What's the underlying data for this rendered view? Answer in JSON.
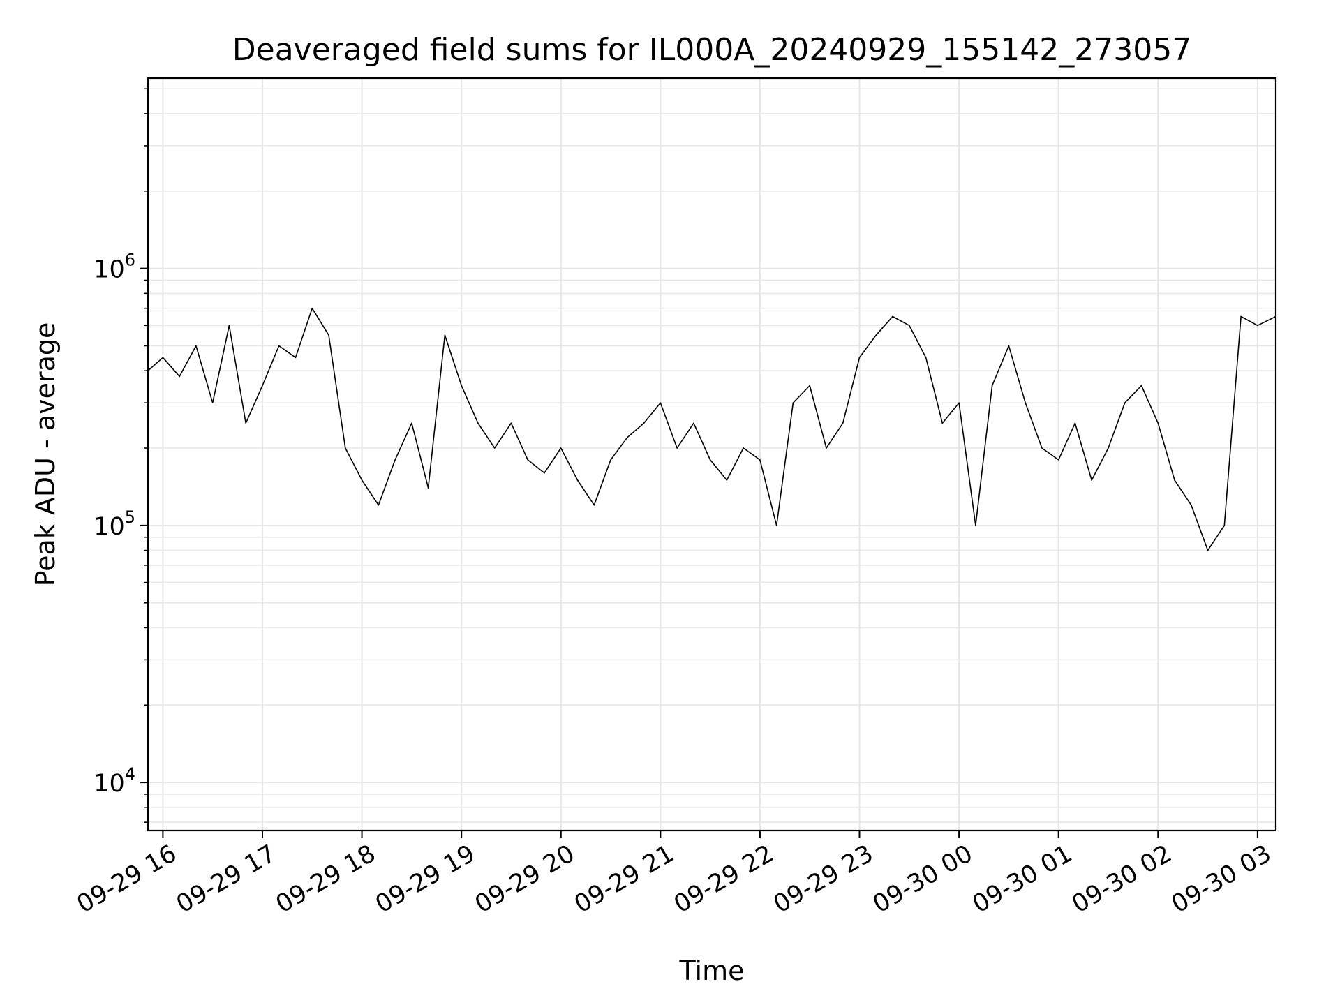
{
  "chart_data": {
    "type": "line",
    "title": "Deaveraged field sums for IL000A_20240929_155142_273057",
    "xlabel": "Time",
    "ylabel": "Peak ADU - average",
    "yscale": "log",
    "ylim": [
      6500,
      5500000
    ],
    "xlim": [
      "2024-09-29 15:51",
      "2024-09-30 03:11"
    ],
    "grid": true,
    "line_color": "#000000",
    "grid_color": "#e6e6e6",
    "x_ticks": [
      {
        "t": "2024-09-29 16:00",
        "label": "09-29 16"
      },
      {
        "t": "2024-09-29 17:00",
        "label": "09-29 17"
      },
      {
        "t": "2024-09-29 18:00",
        "label": "09-29 18"
      },
      {
        "t": "2024-09-29 19:00",
        "label": "09-29 19"
      },
      {
        "t": "2024-09-29 20:00",
        "label": "09-29 20"
      },
      {
        "t": "2024-09-29 21:00",
        "label": "09-29 21"
      },
      {
        "t": "2024-09-29 22:00",
        "label": "09-29 22"
      },
      {
        "t": "2024-09-29 23:00",
        "label": "09-29 23"
      },
      {
        "t": "2024-09-30 00:00",
        "label": "09-30 00"
      },
      {
        "t": "2024-09-30 01:00",
        "label": "09-30 01"
      },
      {
        "t": "2024-09-30 02:00",
        "label": "09-30 02"
      },
      {
        "t": "2024-09-30 03:00",
        "label": "09-30 03"
      }
    ],
    "y_ticks": [
      {
        "v": 10000,
        "base": "10",
        "exp": "4"
      },
      {
        "v": 100000,
        "base": "10",
        "exp": "5"
      },
      {
        "v": 1000000,
        "base": "10",
        "exp": "6"
      }
    ],
    "series": [
      {
        "values_note": "",
        "x": [
          "2024-09-29 15:51",
          "2024-09-29 16:00",
          "2024-09-29 16:10",
          "2024-09-29 16:20",
          "2024-09-29 16:30",
          "2024-09-29 16:40",
          "2024-09-29 16:50",
          "2024-09-29 17:00",
          "2024-09-29 17:10",
          "2024-09-29 17:20",
          "2024-09-29 17:30",
          "2024-09-29 17:40",
          "2024-09-29 17:50",
          "2024-09-29 18:00",
          "2024-09-29 18:10",
          "2024-09-29 18:20",
          "2024-09-29 18:30",
          "2024-09-29 18:40",
          "2024-09-29 18:50",
          "2024-09-29 19:00",
          "2024-09-29 19:10",
          "2024-09-29 19:20",
          "2024-09-29 19:30",
          "2024-09-29 19:40",
          "2024-09-29 19:50",
          "2024-09-29 20:00",
          "2024-09-29 20:10",
          "2024-09-29 20:20",
          "2024-09-29 20:30",
          "2024-09-29 20:40",
          "2024-09-29 20:50",
          "2024-09-29 21:00",
          "2024-09-29 21:10",
          "2024-09-29 21:20",
          "2024-09-29 21:30",
          "2024-09-29 21:40",
          "2024-09-29 21:50",
          "2024-09-29 22:00",
          "2024-09-29 22:10",
          "2024-09-29 22:20",
          "2024-09-29 22:30",
          "2024-09-29 22:40",
          "2024-09-29 22:50",
          "2024-09-29 23:00",
          "2024-09-29 23:10",
          "2024-09-29 23:20",
          "2024-09-29 23:30",
          "2024-09-29 23:40",
          "2024-09-29 23:50",
          "2024-09-30 00:00",
          "2024-09-30 00:10",
          "2024-09-30 00:20",
          "2024-09-30 00:30",
          "2024-09-30 00:40",
          "2024-09-30 00:50",
          "2024-09-30 01:00",
          "2024-09-30 01:10",
          "2024-09-30 01:20",
          "2024-09-30 01:30",
          "2024-09-30 01:40",
          "2024-09-30 01:50",
          "2024-09-30 02:00",
          "2024-09-30 02:10",
          "2024-09-30 02:20",
          "2024-09-30 02:30",
          "2024-09-30 02:40",
          "2024-09-30 02:50",
          "2024-09-30 03:00",
          "2024-09-30 03:11"
        ],
        "y": [
          400000,
          450000,
          380000,
          500000,
          300000,
          600000,
          250000,
          350000,
          500000,
          450000,
          700000,
          550000,
          200000,
          150000,
          120000,
          180000,
          250000,
          140000,
          550000,
          350000,
          250000,
          200000,
          250000,
          180000,
          160000,
          200000,
          150000,
          120000,
          180000,
          220000,
          250000,
          300000,
          200000,
          250000,
          180000,
          150000,
          200000,
          180000,
          100000,
          300000,
          350000,
          200000,
          250000,
          450000,
          550000,
          650000,
          600000,
          450000,
          250000,
          300000,
          100000,
          350000,
          500000,
          300000,
          200000,
          180000,
          250000,
          150000,
          200000,
          300000,
          350000,
          250000,
          150000,
          120000,
          80000,
          100000,
          650000,
          600000,
          650000
        ]
      }
    ]
  }
}
